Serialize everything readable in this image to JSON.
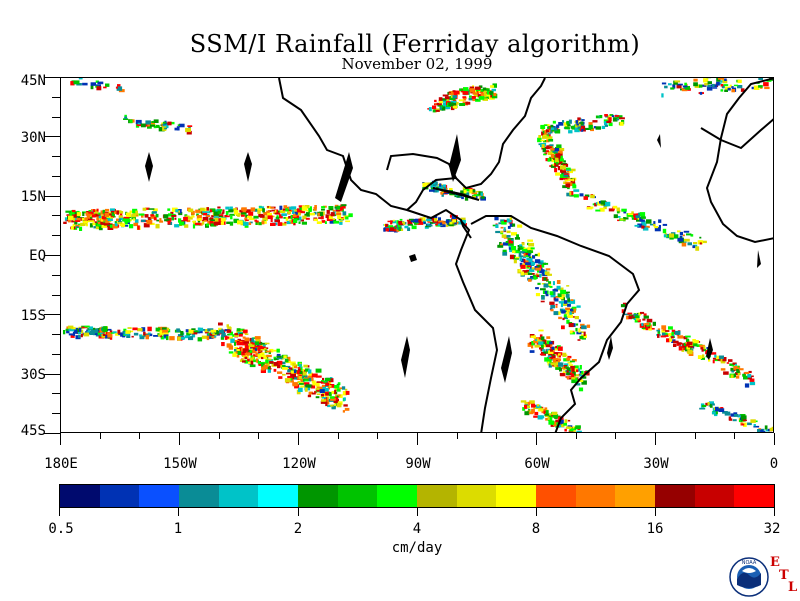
{
  "title": "SSM/I Rainfall (Ferriday algorithm)",
  "subtitle": "November 02, 1999",
  "lat_labels": [
    "45N",
    "30N",
    "15N",
    "EQ",
    "15S",
    "30S",
    "45S"
  ],
  "lon_labels": [
    "180E",
    "150W",
    "120W",
    "90W",
    "60W",
    "30W",
    "0"
  ],
  "colorbar": {
    "colors": [
      "#000a6e",
      "#0032b4",
      "#0a50ff",
      "#0a8c96",
      "#00c3c8",
      "#00ffff",
      "#009600",
      "#00c300",
      "#00ff00",
      "#b4b400",
      "#dcdc00",
      "#ffff00",
      "#ff5000",
      "#ff7800",
      "#ffa000",
      "#960000",
      "#c80000",
      "#ff0000"
    ],
    "tick_labels": [
      "0.5",
      "1",
      "2",
      "4",
      "8",
      "16",
      "32"
    ],
    "units": "cm/day"
  },
  "logo": {
    "text": "NOAA",
    "letters": [
      "E",
      "T",
      "L"
    ],
    "colors": {
      "blue": "#1a5fb4",
      "navy": "#0b2f7a",
      "red": "#cc0000"
    }
  }
}
